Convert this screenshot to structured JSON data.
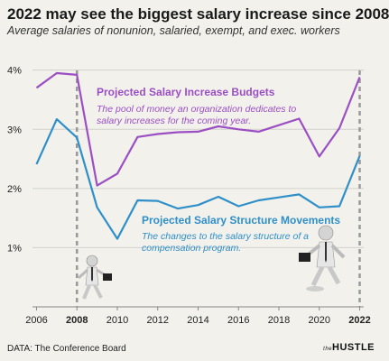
{
  "chart_data": {
    "type": "line",
    "title": "2022 may see the biggest salary increase since 2008",
    "subtitle": "Average salaries of nonunion, salaried, exempt, and exec. workers",
    "x": [
      2006,
      2007,
      2008,
      2009,
      2010,
      2011,
      2012,
      2013,
      2014,
      2015,
      2016,
      2017,
      2018,
      2019,
      2020,
      2021,
      2022
    ],
    "xticks": [
      "2006",
      "2008",
      "2010",
      "2012",
      "2014",
      "2016",
      "2018",
      "2020",
      "2022"
    ],
    "highlight_years": [
      "2008",
      "2022"
    ],
    "yticks": [
      "1%",
      "2%",
      "3%",
      "4%"
    ],
    "ylim": [
      0.0,
      4.3
    ],
    "xlim": [
      2005.8,
      2022.2
    ],
    "grid": true,
    "series": [
      {
        "name": "Projected Salary Increase Budgets",
        "description": "The pool of money an organization dedicates to salary increases for the coming year.",
        "color": "#9b4fc3",
        "values": [
          3.7,
          3.95,
          3.92,
          2.05,
          2.25,
          2.87,
          2.92,
          2.95,
          2.96,
          3.05,
          3.0,
          2.96,
          3.07,
          3.18,
          2.54,
          3.02,
          3.88
        ]
      },
      {
        "name": "Projected Salary Structure Movements",
        "description": "The changes to the salary structure of a compensation program.",
        "color": "#2f8fc9",
        "values": [
          2.41,
          3.17,
          2.86,
          1.68,
          1.15,
          1.8,
          1.79,
          1.66,
          1.72,
          1.86,
          1.7,
          1.8,
          1.85,
          1.9,
          1.68,
          1.7,
          2.55
        ]
      }
    ],
    "source": "DATA: The Conference Board",
    "brand": "HUSTLE",
    "brand_prefix": "the"
  }
}
